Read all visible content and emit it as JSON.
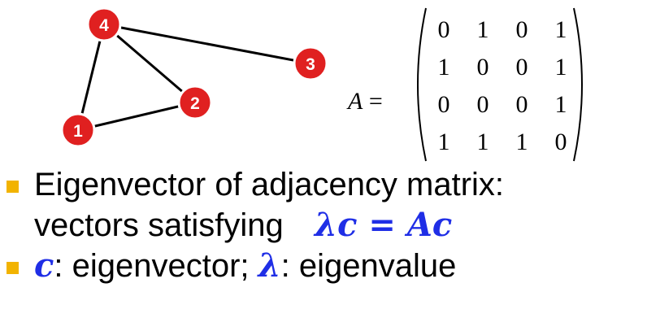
{
  "graph": {
    "nodes": [
      {
        "id": "1",
        "label": "1"
      },
      {
        "id": "2",
        "label": "2"
      },
      {
        "id": "3",
        "label": "3"
      },
      {
        "id": "4",
        "label": "4"
      }
    ],
    "edges": [
      [
        "4",
        "1"
      ],
      [
        "4",
        "2"
      ],
      [
        "4",
        "3"
      ],
      [
        "1",
        "2"
      ]
    ],
    "node_color": "#e02020",
    "node_border": "#ffffff"
  },
  "matrix": {
    "lhs_symbol": "A",
    "equals": "=",
    "rows": [
      [
        "0",
        "1",
        "0",
        "1"
      ],
      [
        "1",
        "0",
        "0",
        "1"
      ],
      [
        "0",
        "0",
        "0",
        "1"
      ],
      [
        "1",
        "1",
        "1",
        "0"
      ]
    ]
  },
  "bullets": {
    "bullet_color": "#f2b300",
    "math_color": "#1f2ee6",
    "line1": "Eigenvector of adjacency matrix:",
    "line2_text": "vectors satisfying",
    "line2_math": {
      "lambda": "λ",
      "c": "c",
      "eq": " = ",
      "A": "A",
      "c2": "c"
    },
    "line3": {
      "c": "c",
      "after_c": ": eigenvector; ",
      "lambda": "λ",
      "after_lambda": ": eigenvalue"
    }
  }
}
